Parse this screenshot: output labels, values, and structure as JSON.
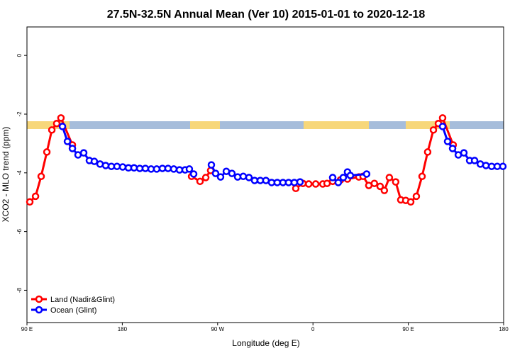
{
  "chart_data": {
    "type": "line",
    "title": "27.5N-32.5N Annual Mean (Ver 10)   2015-01-01 to 2020-12-18",
    "x_label": "Longitude (deg E)",
    "y_label": "XCO2 - MLO trend (ppm)",
    "xlim": [
      90,
      540
    ],
    "ylim": [
      -9.1,
      0.97
    ],
    "xticks": [
      {
        "value": 90,
        "label": "90 E"
      },
      {
        "value": 180,
        "label": "180"
      },
      {
        "value": 270,
        "label": "90 W"
      },
      {
        "value": 360,
        "label": "0"
      },
      {
        "value": 450,
        "label": "90 E"
      },
      {
        "value": 540,
        "label": "180"
      }
    ],
    "yticks": [
      0,
      -2,
      -4,
      -6,
      -8
    ],
    "legend": "bottom-left",
    "series": [
      {
        "name": "Land (Nadir&Glint)",
        "color": "#ff0000",
        "x": [
          92.7,
          98.1,
          103.4,
          108.8,
          113.5,
          118.1,
          122.1,
          132.9,
          190,
          245.4,
          253.4,
          258.8,
          263.4,
          300,
          343.8,
          350.5,
          356,
          362.6,
          369.3,
          373.3,
          378.6,
          386,
          392.6,
          403.3,
          407.3,
          412.7,
          418,
          423.4,
          427.4,
          432.1,
          438.1,
          442.9,
          447.6,
          452.3,
          457.6,
          463,
          468.3,
          473.7,
          478.4,
          482.4,
          492.4
        ],
        "values": [
          -4.99,
          -4.8,
          -4.12,
          -3.29,
          -2.54,
          -2.32,
          -2.13,
          -3.05,
          null,
          -4.12,
          -4.29,
          -4.16,
          -3.92,
          null,
          -4.53,
          -4.36,
          -4.38,
          -4.38,
          -4.38,
          -4.36,
          -4.29,
          -4.24,
          -4.21,
          -4.14,
          -4.12,
          -4.43,
          -4.36,
          -4.46,
          -4.6,
          -4.16,
          -4.31,
          -4.92,
          -4.94,
          -4.99,
          -4.8,
          -4.12,
          -3.29,
          -2.54,
          -2.32,
          -2.13,
          -3.05
        ]
      },
      {
        "name": "Ocean (Glint)",
        "color": "#0000ff",
        "x": [
          123.5,
          128.2,
          132.9,
          138.2,
          143.6,
          148.9,
          153.6,
          159,
          164.3,
          169.7,
          175,
          180.4,
          185.8,
          191.1,
          196.5,
          201.8,
          207.2,
          212.5,
          217.9,
          223.2,
          228.6,
          234,
          239.3,
          243.3,
          247.4,
          255,
          264.1,
          268.1,
          272.8,
          278.2,
          283.5,
          288.9,
          294.2,
          299.6,
          304.9,
          310.3,
          315.6,
          321,
          326.3,
          331.7,
          337,
          342.4,
          347.8,
          360,
          378.6,
          383.9,
          388.6,
          392.6,
          395.3,
          410.7,
          450,
          482.4,
          487.1,
          491.8,
          497.2,
          502.5,
          507.9,
          512.6,
          518,
          523.3,
          528.7,
          534,
          539.3
        ],
        "values": [
          -2.42,
          -2.93,
          -3.17,
          -3.39,
          -3.32,
          -3.58,
          -3.61,
          -3.7,
          -3.75,
          -3.78,
          -3.78,
          -3.8,
          -3.83,
          -3.83,
          -3.85,
          -3.85,
          -3.87,
          -3.87,
          -3.85,
          -3.85,
          -3.87,
          -3.9,
          -3.9,
          -3.87,
          -4.04,
          null,
          -3.73,
          -4.02,
          -4.14,
          -3.95,
          -4.02,
          -4.14,
          -4.12,
          -4.16,
          -4.26,
          -4.26,
          -4.26,
          -4.33,
          -4.33,
          -4.33,
          -4.33,
          -4.33,
          -4.31,
          null,
          -4.16,
          -4.33,
          -4.16,
          -3.97,
          -4.09,
          -4.04,
          null,
          -2.42,
          -2.93,
          -3.17,
          -3.39,
          -3.32,
          -3.58,
          -3.58,
          -3.7,
          -3.75,
          -3.78,
          -3.78,
          -3.78
        ]
      }
    ]
  }
}
